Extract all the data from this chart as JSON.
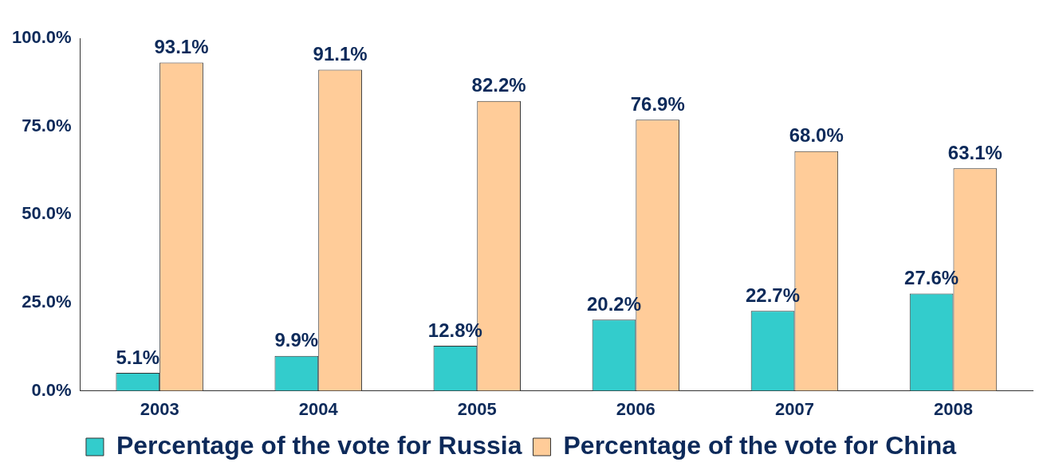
{
  "chart_data": {
    "type": "bar",
    "categories": [
      "2003",
      "2004",
      "2005",
      "2006",
      "2007",
      "2008"
    ],
    "series": [
      {
        "name": "Percentage of the vote for Russia",
        "color": "#33cccc",
        "values": [
          5.1,
          9.9,
          12.8,
          20.2,
          22.7,
          27.6
        ],
        "value_labels": [
          "5.1%",
          "9.9%",
          "12.8%",
          "20.2%",
          "22.7%",
          "27.6%"
        ]
      },
      {
        "name": "Percentage of the vote for China",
        "color": "#ffcc99",
        "values": [
          93.1,
          91.1,
          82.2,
          76.9,
          68.0,
          63.1
        ],
        "value_labels": [
          "93.1%",
          "91.1%",
          "82.2%",
          "76.9%",
          "68.0%",
          "63.1%"
        ]
      }
    ],
    "ylim": [
      0,
      100
    ],
    "yticks": [
      {
        "value": 0,
        "label": "0.0%"
      },
      {
        "value": 25,
        "label": "25.0%"
      },
      {
        "value": 50,
        "label": "50.0%"
      },
      {
        "value": 75,
        "label": "75.0%"
      },
      {
        "value": 100,
        "label": "100.0%"
      }
    ],
    "grid": false,
    "legend": "bottom"
  }
}
